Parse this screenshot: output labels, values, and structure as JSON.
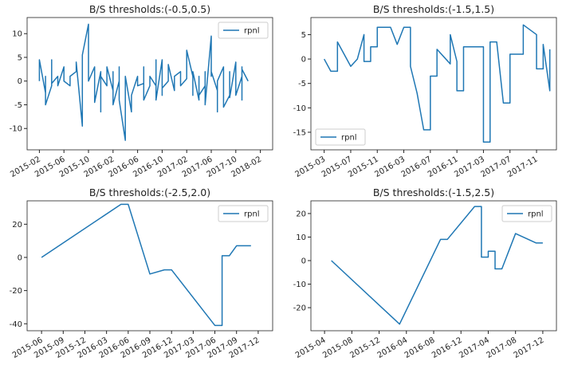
{
  "chart_data": [
    {
      "type": "line",
      "title": "B/S thresholds:(-0.5,0.5)",
      "x": [
        "2015-02",
        "2015-02",
        "2015-03",
        "2015-03",
        "2015-03",
        "2015-04",
        "2015-04",
        "2015-04",
        "2015-05",
        "2015-05",
        "2015-06",
        "2015-06",
        "2015-07",
        "2015-07",
        "2015-08",
        "2015-08",
        "2015-09",
        "2015-09",
        "2015-10",
        "2015-10",
        "2015-11",
        "2015-11",
        "2015-11",
        "2015-12",
        "2015-12",
        "2015-12",
        "2016-01",
        "2016-01",
        "2016-02",
        "2016-02",
        "2016-02",
        "2016-03",
        "2016-03",
        "2016-03",
        "2016-04",
        "2016-04",
        "2016-05",
        "2016-05",
        "2016-06",
        "2016-06",
        "2016-07",
        "2016-07",
        "2016-07",
        "2016-08",
        "2016-08",
        "2016-09",
        "2016-09",
        "2016-09",
        "2016-10",
        "2016-10",
        "2016-10",
        "2016-11",
        "2016-11",
        "2016-12",
        "2016-12",
        "2017-01",
        "2017-01",
        "2017-02",
        "2017-02",
        "2017-02",
        "2017-03",
        "2017-03",
        "2017-03",
        "2017-04",
        "2017-04",
        "2017-04",
        "2017-05",
        "2017-05",
        "2017-05",
        "2017-06",
        "2017-06",
        "2017-06",
        "2017-07",
        "2017-07",
        "2017-07",
        "2017-08",
        "2017-08",
        "2017-08",
        "2017-09",
        "2017-09",
        "2017-09",
        "2017-10",
        "2017-10",
        "2017-10",
        "2017-11",
        "2017-11",
        "2017-11",
        "2017-11",
        "2017-12",
        "2017-12"
      ],
      "series": [
        {
          "name": "rpnl",
          "color": "#1f77b4",
          "values": [
            0,
            4.5,
            -2.5,
            1,
            -5,
            -1,
            4.5,
            -0.5,
            1,
            -1,
            3,
            0,
            -1,
            1,
            2,
            4,
            -9.5,
            5.5,
            12,
            0,
            3,
            -3,
            -4.5,
            2,
            -6.5,
            1,
            -1,
            3,
            -2,
            2,
            -5,
            0,
            3,
            -4,
            -12.5,
            1,
            -6.5,
            -3,
            1,
            -1,
            -0.5,
            3,
            -4,
            -1,
            1,
            -1,
            4.5,
            -4,
            4.5,
            -3,
            -1.5,
            0,
            3.5,
            -2,
            1,
            2,
            -1,
            0.5,
            6.5,
            6.5,
            1,
            -3,
            2,
            -4,
            1,
            -3,
            -1,
            2,
            -5,
            9.5,
            1,
            2,
            -2,
            -6.5,
            0,
            3,
            -1,
            -5.5,
            -3,
            2,
            -3.5,
            4,
            -1,
            -3,
            1,
            3,
            -4,
            2.5,
            0,
            0
          ]
        }
      ],
      "xlim": [
        "2014-12",
        "2018-04"
      ],
      "xticks": [
        "2015-02",
        "2015-06",
        "2015-10",
        "2016-02",
        "2016-06",
        "2016-10",
        "2017-02",
        "2017-06",
        "2017-10",
        "2018-02"
      ],
      "ylim": [
        -14.5,
        13.4
      ],
      "yticks": [
        -10,
        -5,
        0,
        5,
        10
      ],
      "legend": "upper right"
    },
    {
      "type": "line",
      "title": "B/S thresholds:(-1.5,1.5)",
      "x": [
        "2015-03",
        "2015-04",
        "2015-05",
        "2015-05",
        "2015-07",
        "2015-08",
        "2015-09",
        "2015-09",
        "2015-10",
        "2015-10",
        "2015-11",
        "2015-11",
        "2015-12",
        "2016-01",
        "2016-02",
        "2016-03",
        "2016-04",
        "2016-04",
        "2016-05",
        "2016-06",
        "2016-07",
        "2016-07",
        "2016-08",
        "2016-08",
        "2016-10",
        "2016-10",
        "2016-11",
        "2016-11",
        "2016-12",
        "2016-12",
        "2017-01",
        "2017-03",
        "2017-03",
        "2017-04",
        "2017-04",
        "2017-05",
        "2017-06",
        "2017-07",
        "2017-07",
        "2017-09",
        "2017-09",
        "2017-10",
        "2017-11",
        "2017-11",
        "2017-12",
        "2017-12",
        "2018-01",
        "2018-01"
      ],
      "series": [
        {
          "name": "rpnl",
          "color": "#1f77b4",
          "values": [
            0,
            -2.5,
            -2.5,
            3.5,
            -1.5,
            0,
            5,
            -0.5,
            -0.5,
            2.5,
            2.5,
            6.5,
            6.5,
            6.5,
            3,
            6.5,
            6.5,
            -1.5,
            -7,
            -14.5,
            -14.5,
            -3.5,
            -3.5,
            2,
            -1,
            5,
            -0.5,
            -6.5,
            -6.5,
            2.5,
            2.5,
            2.5,
            -17,
            -17,
            3.5,
            3.5,
            -9,
            -9,
            1,
            1,
            7,
            6,
            5,
            -2,
            -2,
            3,
            -6.5,
            2
          ]
        }
      ],
      "xlim": [
        "2015-01",
        "2018-02"
      ],
      "xticks": [
        "2015-03",
        "2015-07",
        "2015-11",
        "2016-03",
        "2016-07",
        "2016-11",
        "2017-03",
        "2017-07",
        "2017-11"
      ],
      "ylim": [
        -18.6,
        8.5
      ],
      "yticks": [
        -15,
        -10,
        -5,
        0,
        5
      ],
      "legend": "lower left"
    },
    {
      "type": "line",
      "title": "B/S thresholds:(-2.5,2.0)",
      "x": [
        "2015-06",
        "2016-05",
        "2016-06",
        "2016-09",
        "2016-11",
        "2016-12",
        "2017-06",
        "2017-07",
        "2017-07",
        "2017-08",
        "2017-09",
        "2017-11"
      ],
      "series": [
        {
          "name": "rpnl",
          "color": "#1f77b4",
          "values": [
            0,
            32,
            32,
            -10,
            -7.5,
            -7.5,
            -41,
            -41,
            1,
            1,
            7,
            7
          ]
        }
      ],
      "xlim": [
        "2015-04",
        "2018-02"
      ],
      "xticks": [
        "2015-06",
        "2015-09",
        "2015-12",
        "2016-03",
        "2016-06",
        "2016-09",
        "2016-12",
        "2017-03",
        "2017-06",
        "2017-09",
        "2017-12"
      ],
      "ylim": [
        -44.2,
        34.1
      ],
      "yticks": [
        -40,
        -20,
        0,
        20
      ],
      "legend": "upper right"
    },
    {
      "type": "line",
      "title": "B/S thresholds:(-1.5,2.5)",
      "x": [
        "2015-05",
        "2016-03",
        "2016-09",
        "2016-10",
        "2017-02",
        "2017-03",
        "2017-03",
        "2017-04",
        "2017-04",
        "2017-05",
        "2017-05",
        "2017-06",
        "2017-08",
        "2017-11",
        "2017-12"
      ],
      "series": [
        {
          "name": "rpnl",
          "color": "#1f77b4",
          "values": [
            0,
            -27,
            9,
            9,
            23,
            23,
            1.5,
            1.5,
            4,
            4,
            -3.5,
            -3.5,
            11.5,
            7.5,
            7.5
          ]
        }
      ],
      "xlim": [
        "2015-02",
        "2018-02"
      ],
      "xticks": [
        "2015-04",
        "2015-08",
        "2015-12",
        "2016-04",
        "2016-08",
        "2016-12",
        "2017-04",
        "2017-08",
        "2017-12"
      ],
      "ylim": [
        -29.8,
        25.4
      ],
      "yticks": [
        -20,
        -10,
        0,
        10,
        20
      ],
      "legend": "upper right"
    }
  ]
}
